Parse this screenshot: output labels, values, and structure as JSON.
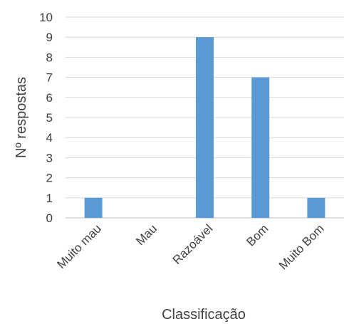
{
  "chart_data": {
    "type": "bar",
    "categories": [
      "Muito mau",
      "Mau",
      "Razoável",
      "Bom",
      "Muito Bom"
    ],
    "values": [
      1,
      0,
      9,
      7,
      1
    ],
    "title": "",
    "xlabel": "Classificação",
    "ylabel": "Nº respostas",
    "ylim": [
      0,
      10
    ],
    "yticks": [
      0,
      1,
      2,
      3,
      4,
      5,
      6,
      7,
      8,
      9,
      10
    ],
    "grid": true,
    "legend": "none",
    "bar_color": "#5b9bd5"
  }
}
